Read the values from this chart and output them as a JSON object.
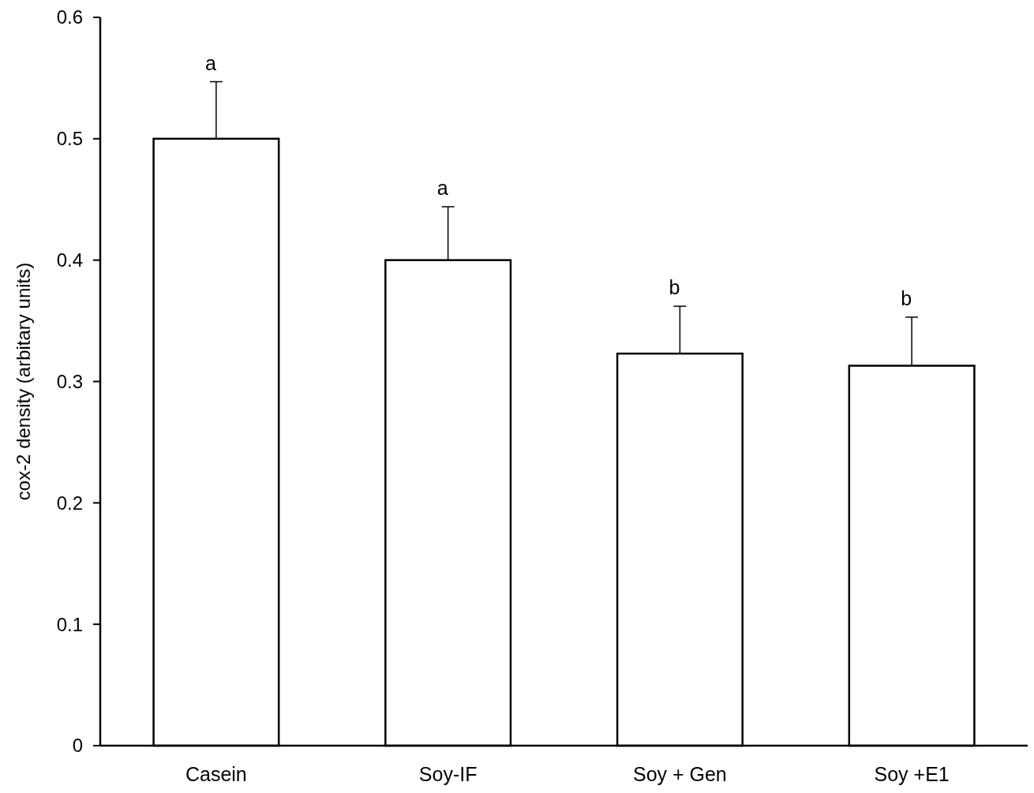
{
  "chart_data": {
    "type": "bar",
    "ylabel": "cox-2 density (arbitary units)",
    "categories": [
      "Casein",
      "Soy-IF",
      "Soy + Gen",
      "Soy +E1"
    ],
    "values": [
      0.5,
      0.4,
      0.323,
      0.313
    ],
    "errors": [
      [
        0.5,
        0.547
      ],
      [
        0.4,
        0.444
      ],
      [
        0.323,
        0.362
      ],
      [
        0.313,
        0.353
      ]
    ],
    "color": "#ffffff",
    "ylim": [
      0,
      0.6
    ],
    "yticks": [
      0,
      0.1,
      0.2,
      0.3,
      0.4,
      0.5,
      0.6
    ],
    "grid": false,
    "annotations": [
      {
        "text": "a",
        "x": "Casein",
        "y": 0.547
      },
      {
        "text": "a",
        "x": "Soy-IF",
        "y": 0.444
      },
      {
        "text": "b",
        "x": "Soy + Gen",
        "y": 0.362
      },
      {
        "text": "b",
        "x": "Soy +E1",
        "y": 0.353
      }
    ]
  }
}
